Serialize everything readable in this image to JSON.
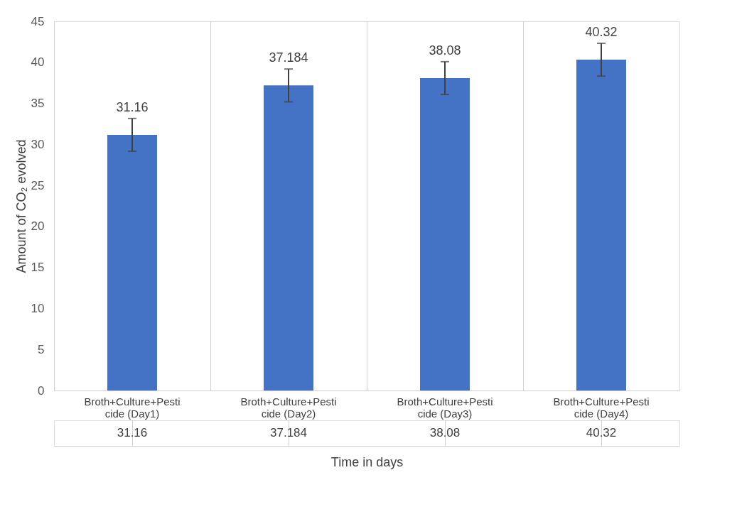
{
  "chart_data": {
    "type": "bar",
    "xlabel": "Time in days",
    "ylabel": "Amount of CO₂ evolved",
    "categories": [
      "Broth+Culture+Pesticide (Day1)",
      "Broth+Culture+Pesticide (Day2)",
      "Broth+Culture+Pesticide (Day3)",
      "Broth+Culture+Pesticide (Day4)"
    ],
    "series": [
      {
        "color": "#4472c4",
        "values": [
          31.16,
          37.184,
          38.08,
          40.32
        ],
        "value_labels": [
          "31.16",
          "37.184",
          "38.08",
          "40.32"
        ],
        "errors": [
          2,
          2,
          2,
          2
        ]
      }
    ],
    "ylim": [
      0,
      45
    ],
    "yticks": [
      0,
      5,
      10,
      15,
      20,
      25,
      30,
      35,
      40,
      45
    ],
    "grid": false,
    "annotations": [
      "31.16",
      "37.184",
      "38.08",
      "40.32"
    ]
  }
}
